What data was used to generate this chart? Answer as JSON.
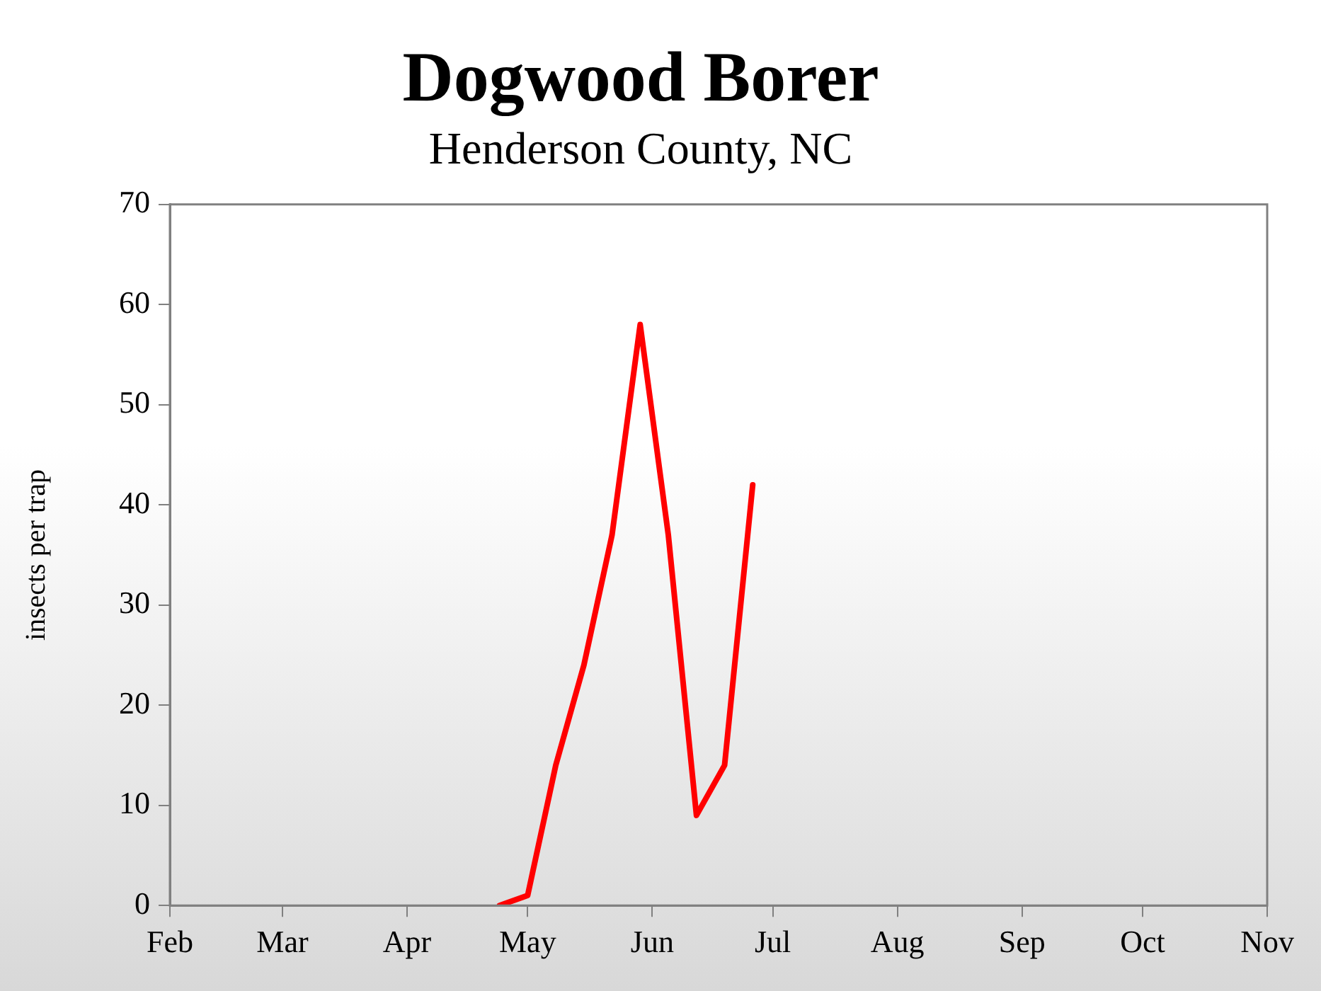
{
  "chart_data": {
    "type": "line",
    "title": "Dogwood Borer",
    "subtitle": "Henderson County, NC",
    "ylabel": "insects per trap",
    "x": [
      "--04-24",
      "--05-01",
      "--05-08",
      "--05-15",
      "--05-22",
      "--05-29",
      "--06-05",
      "--06-12",
      "--06-19",
      "--06-26"
    ],
    "series": [
      {
        "color": "#ff0000",
        "values": [
          0,
          1,
          14,
          24,
          37,
          58,
          37,
          9,
          14,
          42
        ]
      }
    ],
    "xlim": [
      "--02-01",
      "--11-01"
    ],
    "xticks": [
      {
        "value": "--02-01",
        "label": "Feb"
      },
      {
        "value": "--03-01",
        "label": "Mar"
      },
      {
        "value": "--04-01",
        "label": "Apr"
      },
      {
        "value": "--05-01",
        "label": "May"
      },
      {
        "value": "--06-01",
        "label": "Jun"
      },
      {
        "value": "--07-01",
        "label": "Jul"
      },
      {
        "value": "--08-01",
        "label": "Aug"
      },
      {
        "value": "--09-01",
        "label": "Sep"
      },
      {
        "value": "--10-01",
        "label": "Oct"
      },
      {
        "value": "--11-01",
        "label": "Nov"
      }
    ],
    "ylim": [
      0,
      70
    ],
    "yticks": [
      0,
      10,
      20,
      30,
      40,
      50,
      60,
      70
    ],
    "grid": false,
    "legend": false,
    "marker": "none",
    "line_style": "solid"
  }
}
